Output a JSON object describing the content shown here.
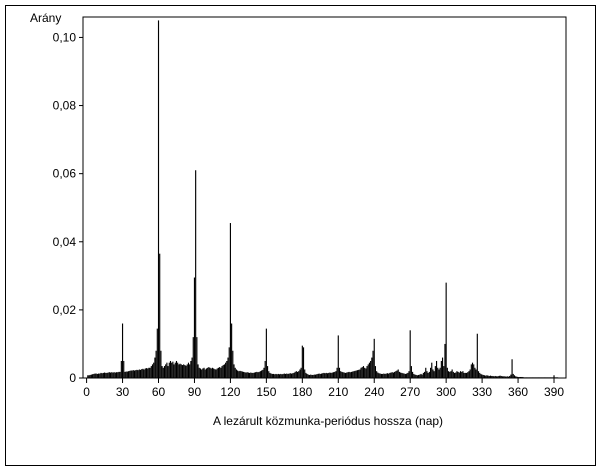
{
  "chart_data": {
    "type": "bar",
    "ylabel": "Arány",
    "xlabel": "A lezárult közmunka-periódus hossza (nap)",
    "xlim": [
      -3,
      400
    ],
    "ylim": [
      0,
      0.106
    ],
    "x_ticks": [
      0,
      30,
      60,
      90,
      120,
      150,
      180,
      210,
      240,
      270,
      300,
      330,
      360,
      390
    ],
    "x_tick_labels": [
      "0",
      "30",
      "60",
      "90",
      "120",
      "150",
      "180",
      "210",
      "240",
      "270",
      "300",
      "330",
      "360",
      "390"
    ],
    "y_ticks": [
      0,
      0.02,
      0.04,
      0.06,
      0.08,
      0.1
    ],
    "y_tick_labels": [
      "0",
      "0,02",
      "0,04",
      "0,06",
      "0,08",
      "0,10"
    ],
    "grid": false,
    "legend": "none",
    "bar_color": "#000000",
    "x": [
      1,
      2,
      3,
      4,
      5,
      6,
      7,
      8,
      9,
      10,
      11,
      12,
      13,
      14,
      15,
      16,
      17,
      18,
      19,
      20,
      21,
      22,
      23,
      24,
      25,
      26,
      27,
      28,
      29,
      30,
      31,
      32,
      33,
      34,
      35,
      36,
      37,
      38,
      39,
      40,
      41,
      42,
      43,
      44,
      45,
      46,
      47,
      48,
      49,
      50,
      51,
      52,
      53,
      54,
      55,
      56,
      57,
      58,
      59,
      60,
      61,
      62,
      63,
      64,
      65,
      66,
      67,
      68,
      69,
      70,
      71,
      72,
      73,
      74,
      75,
      76,
      77,
      78,
      79,
      80,
      81,
      82,
      83,
      84,
      85,
      86,
      87,
      88,
      89,
      90,
      91,
      92,
      93,
      94,
      95,
      96,
      97,
      98,
      99,
      100,
      101,
      102,
      103,
      104,
      105,
      106,
      107,
      108,
      109,
      110,
      111,
      112,
      113,
      114,
      115,
      116,
      117,
      118,
      119,
      120,
      121,
      122,
      123,
      124,
      125,
      126,
      127,
      128,
      129,
      130,
      131,
      132,
      133,
      134,
      135,
      136,
      137,
      138,
      139,
      140,
      141,
      142,
      143,
      144,
      145,
      146,
      147,
      148,
      149,
      150,
      151,
      152,
      153,
      154,
      155,
      156,
      157,
      158,
      159,
      160,
      161,
      162,
      163,
      164,
      165,
      166,
      167,
      168,
      169,
      170,
      171,
      172,
      173,
      174,
      175,
      176,
      177,
      178,
      179,
      180,
      181,
      182,
      183,
      184,
      185,
      186,
      187,
      188,
      189,
      190,
      191,
      192,
      193,
      194,
      195,
      196,
      197,
      198,
      199,
      200,
      201,
      202,
      203,
      204,
      205,
      206,
      207,
      208,
      209,
      210,
      211,
      212,
      213,
      214,
      215,
      216,
      217,
      218,
      219,
      220,
      221,
      222,
      223,
      224,
      225,
      226,
      227,
      228,
      229,
      230,
      231,
      232,
      233,
      234,
      235,
      236,
      237,
      238,
      239,
      240,
      241,
      242,
      243,
      244,
      245,
      246,
      247,
      248,
      249,
      250,
      251,
      252,
      253,
      254,
      255,
      256,
      257,
      258,
      259,
      260,
      261,
      262,
      263,
      264,
      265,
      266,
      267,
      268,
      269,
      270,
      271,
      272,
      273,
      274,
      275,
      276,
      277,
      278,
      279,
      280,
      281,
      282,
      283,
      284,
      285,
      286,
      287,
      288,
      289,
      290,
      291,
      292,
      293,
      294,
      295,
      296,
      297,
      298,
      299,
      300,
      301,
      302,
      303,
      304,
      305,
      306,
      307,
      308,
      309,
      310,
      311,
      312,
      313,
      314,
      315,
      316,
      317,
      318,
      319,
      320,
      321,
      322,
      323,
      324,
      325,
      326,
      327,
      328,
      329,
      330,
      331,
      332,
      333,
      334,
      335,
      336,
      337,
      338,
      339,
      340,
      341,
      342,
      343,
      344,
      345,
      346,
      347,
      348,
      349,
      350,
      351,
      352,
      353,
      354,
      355,
      356,
      357,
      358,
      359,
      360,
      361,
      362,
      363,
      364,
      365,
      366,
      367,
      368,
      369,
      370,
      371,
      372,
      373,
      374,
      375,
      376,
      377,
      378,
      379,
      380,
      381,
      382,
      383,
      384,
      385,
      386,
      387,
      388,
      389,
      390,
      391,
      392,
      393
    ],
    "values": [
      0.0008,
      0.0008,
      0.0009,
      0.001,
      0.0011,
      0.0012,
      0.0013,
      0.0013,
      0.0012,
      0.0013,
      0.0013,
      0.0015,
      0.0014,
      0.0015,
      0.0016,
      0.0015,
      0.0015,
      0.0016,
      0.0017,
      0.0016,
      0.0017,
      0.0016,
      0.0017,
      0.0016,
      0.0017,
      0.0017,
      0.0018,
      0.0018,
      0.005,
      0.016,
      0.005,
      0.0018,
      0.0019,
      0.0019,
      0.002,
      0.0021,
      0.0022,
      0.0022,
      0.0023,
      0.0022,
      0.0023,
      0.0024,
      0.0023,
      0.0025,
      0.0024,
      0.0026,
      0.0027,
      0.0025,
      0.0028,
      0.0029,
      0.0028,
      0.003,
      0.003,
      0.0035,
      0.004,
      0.0045,
      0.006,
      0.008,
      0.0145,
      0.105,
      0.0365,
      0.008,
      0.0035,
      0.003,
      0.0035,
      0.004,
      0.0045,
      0.0035,
      0.0045,
      0.005,
      0.0045,
      0.0048,
      0.004,
      0.0045,
      0.005,
      0.0045,
      0.004,
      0.0042,
      0.004,
      0.0038,
      0.004,
      0.0038,
      0.0036,
      0.004,
      0.0045,
      0.004,
      0.005,
      0.006,
      0.012,
      0.0295,
      0.061,
      0.012,
      0.004,
      0.003,
      0.0028,
      0.0025,
      0.0028,
      0.003,
      0.0025,
      0.0028,
      0.003,
      0.0032,
      0.003,
      0.0028,
      0.003,
      0.0028,
      0.0026,
      0.0025,
      0.0028,
      0.003,
      0.0032,
      0.003,
      0.0035,
      0.0038,
      0.004,
      0.0045,
      0.005,
      0.006,
      0.009,
      0.0455,
      0.016,
      0.008,
      0.004,
      0.003,
      0.0025,
      0.0022,
      0.002,
      0.0021,
      0.002,
      0.0019,
      0.0018,
      0.0017,
      0.0016,
      0.0017,
      0.0016,
      0.0015,
      0.0016,
      0.0015,
      0.0015,
      0.0016,
      0.0017,
      0.0018,
      0.0017,
      0.0018,
      0.002,
      0.0022,
      0.0024,
      0.003,
      0.005,
      0.0145,
      0.0035,
      0.002,
      0.0015,
      0.0013,
      0.0012,
      0.0012,
      0.0011,
      0.0012,
      0.0011,
      0.0012,
      0.0011,
      0.0012,
      0.0011,
      0.0012,
      0.0013,
      0.0012,
      0.0013,
      0.0012,
      0.0013,
      0.0014,
      0.0013,
      0.0014,
      0.0015,
      0.0018,
      0.002,
      0.0018,
      0.002,
      0.0025,
      0.003,
      0.0095,
      0.009,
      0.0025,
      0.0015,
      0.0012,
      0.001,
      0.0009,
      0.001,
      0.0009,
      0.0009,
      0.001,
      0.001,
      0.0011,
      0.0012,
      0.0013,
      0.0012,
      0.0013,
      0.0014,
      0.0015,
      0.0014,
      0.0015,
      0.0014,
      0.0015,
      0.0016,
      0.0015,
      0.0016,
      0.0017,
      0.0018,
      0.002,
      0.003,
      0.0125,
      0.003,
      0.002,
      0.0018,
      0.0017,
      0.0016,
      0.0015,
      0.0016,
      0.0017,
      0.0018,
      0.0017,
      0.0018,
      0.0019,
      0.002,
      0.0021,
      0.0022,
      0.0023,
      0.0024,
      0.0025,
      0.003,
      0.0032,
      0.0035,
      0.003,
      0.0028,
      0.0035,
      0.004,
      0.0045,
      0.005,
      0.006,
      0.008,
      0.0115,
      0.0035,
      0.002,
      0.0016,
      0.0014,
      0.0013,
      0.0012,
      0.0012,
      0.0013,
      0.0012,
      0.0013,
      0.0014,
      0.0013,
      0.0015,
      0.0016,
      0.0017,
      0.0016,
      0.0018,
      0.002,
      0.0022,
      0.0025,
      0.0018,
      0.0016,
      0.0015,
      0.0014,
      0.0013,
      0.0012,
      0.0013,
      0.0015,
      0.002,
      0.014,
      0.0035,
      0.0018,
      0.0012,
      0.001,
      0.0009,
      0.0008,
      0.0009,
      0.001,
      0.0012,
      0.001,
      0.0015,
      0.0018,
      0.003,
      0.002,
      0.0015,
      0.0018,
      0.003,
      0.0045,
      0.0025,
      0.002,
      0.0035,
      0.005,
      0.003,
      0.0025,
      0.003,
      0.005,
      0.006,
      0.0035,
      0.01,
      0.028,
      0.003,
      0.002,
      0.0018,
      0.002,
      0.0025,
      0.0018,
      0.0015,
      0.0016,
      0.002,
      0.0018,
      0.0016,
      0.002,
      0.0018,
      0.002,
      0.0015,
      0.0015,
      0.0015,
      0.0017,
      0.002,
      0.0025,
      0.004,
      0.0045,
      0.004,
      0.003,
      0.0025,
      0.013,
      0.002,
      0.0015,
      0.0012,
      0.001,
      0.0009,
      0.0008,
      0.0007,
      0.0008,
      0.0007,
      0.0006,
      0.0007,
      0.0006,
      0.0006,
      0.0005,
      0.0006,
      0.0005,
      0.0005,
      0.0006,
      0.0007,
      0.0006,
      0.0005,
      0.0005,
      0.0005,
      0.0004,
      0.0005,
      0.0004,
      0.0006,
      0.001,
      0.0055,
      0.0012,
      0.0008,
      0.0005,
      0.0004,
      0.0003,
      0.0003,
      0.0003,
      0.0003,
      0.0003,
      0.0002,
      0.0002,
      0.0002,
      0.0002,
      0.0002,
      0.0002,
      0.0002,
      0.0002,
      0.0002,
      0.0002,
      0.0002,
      0.0002,
      0.0002,
      0.0002,
      0.0002,
      0.0002,
      0.0002,
      0.0002,
      0.0002,
      0.0002,
      0.0002,
      0.0002,
      0.0002,
      0.0002,
      0.0002,
      0.0008,
      0.0002,
      0.0002,
      0.0002
    ]
  }
}
